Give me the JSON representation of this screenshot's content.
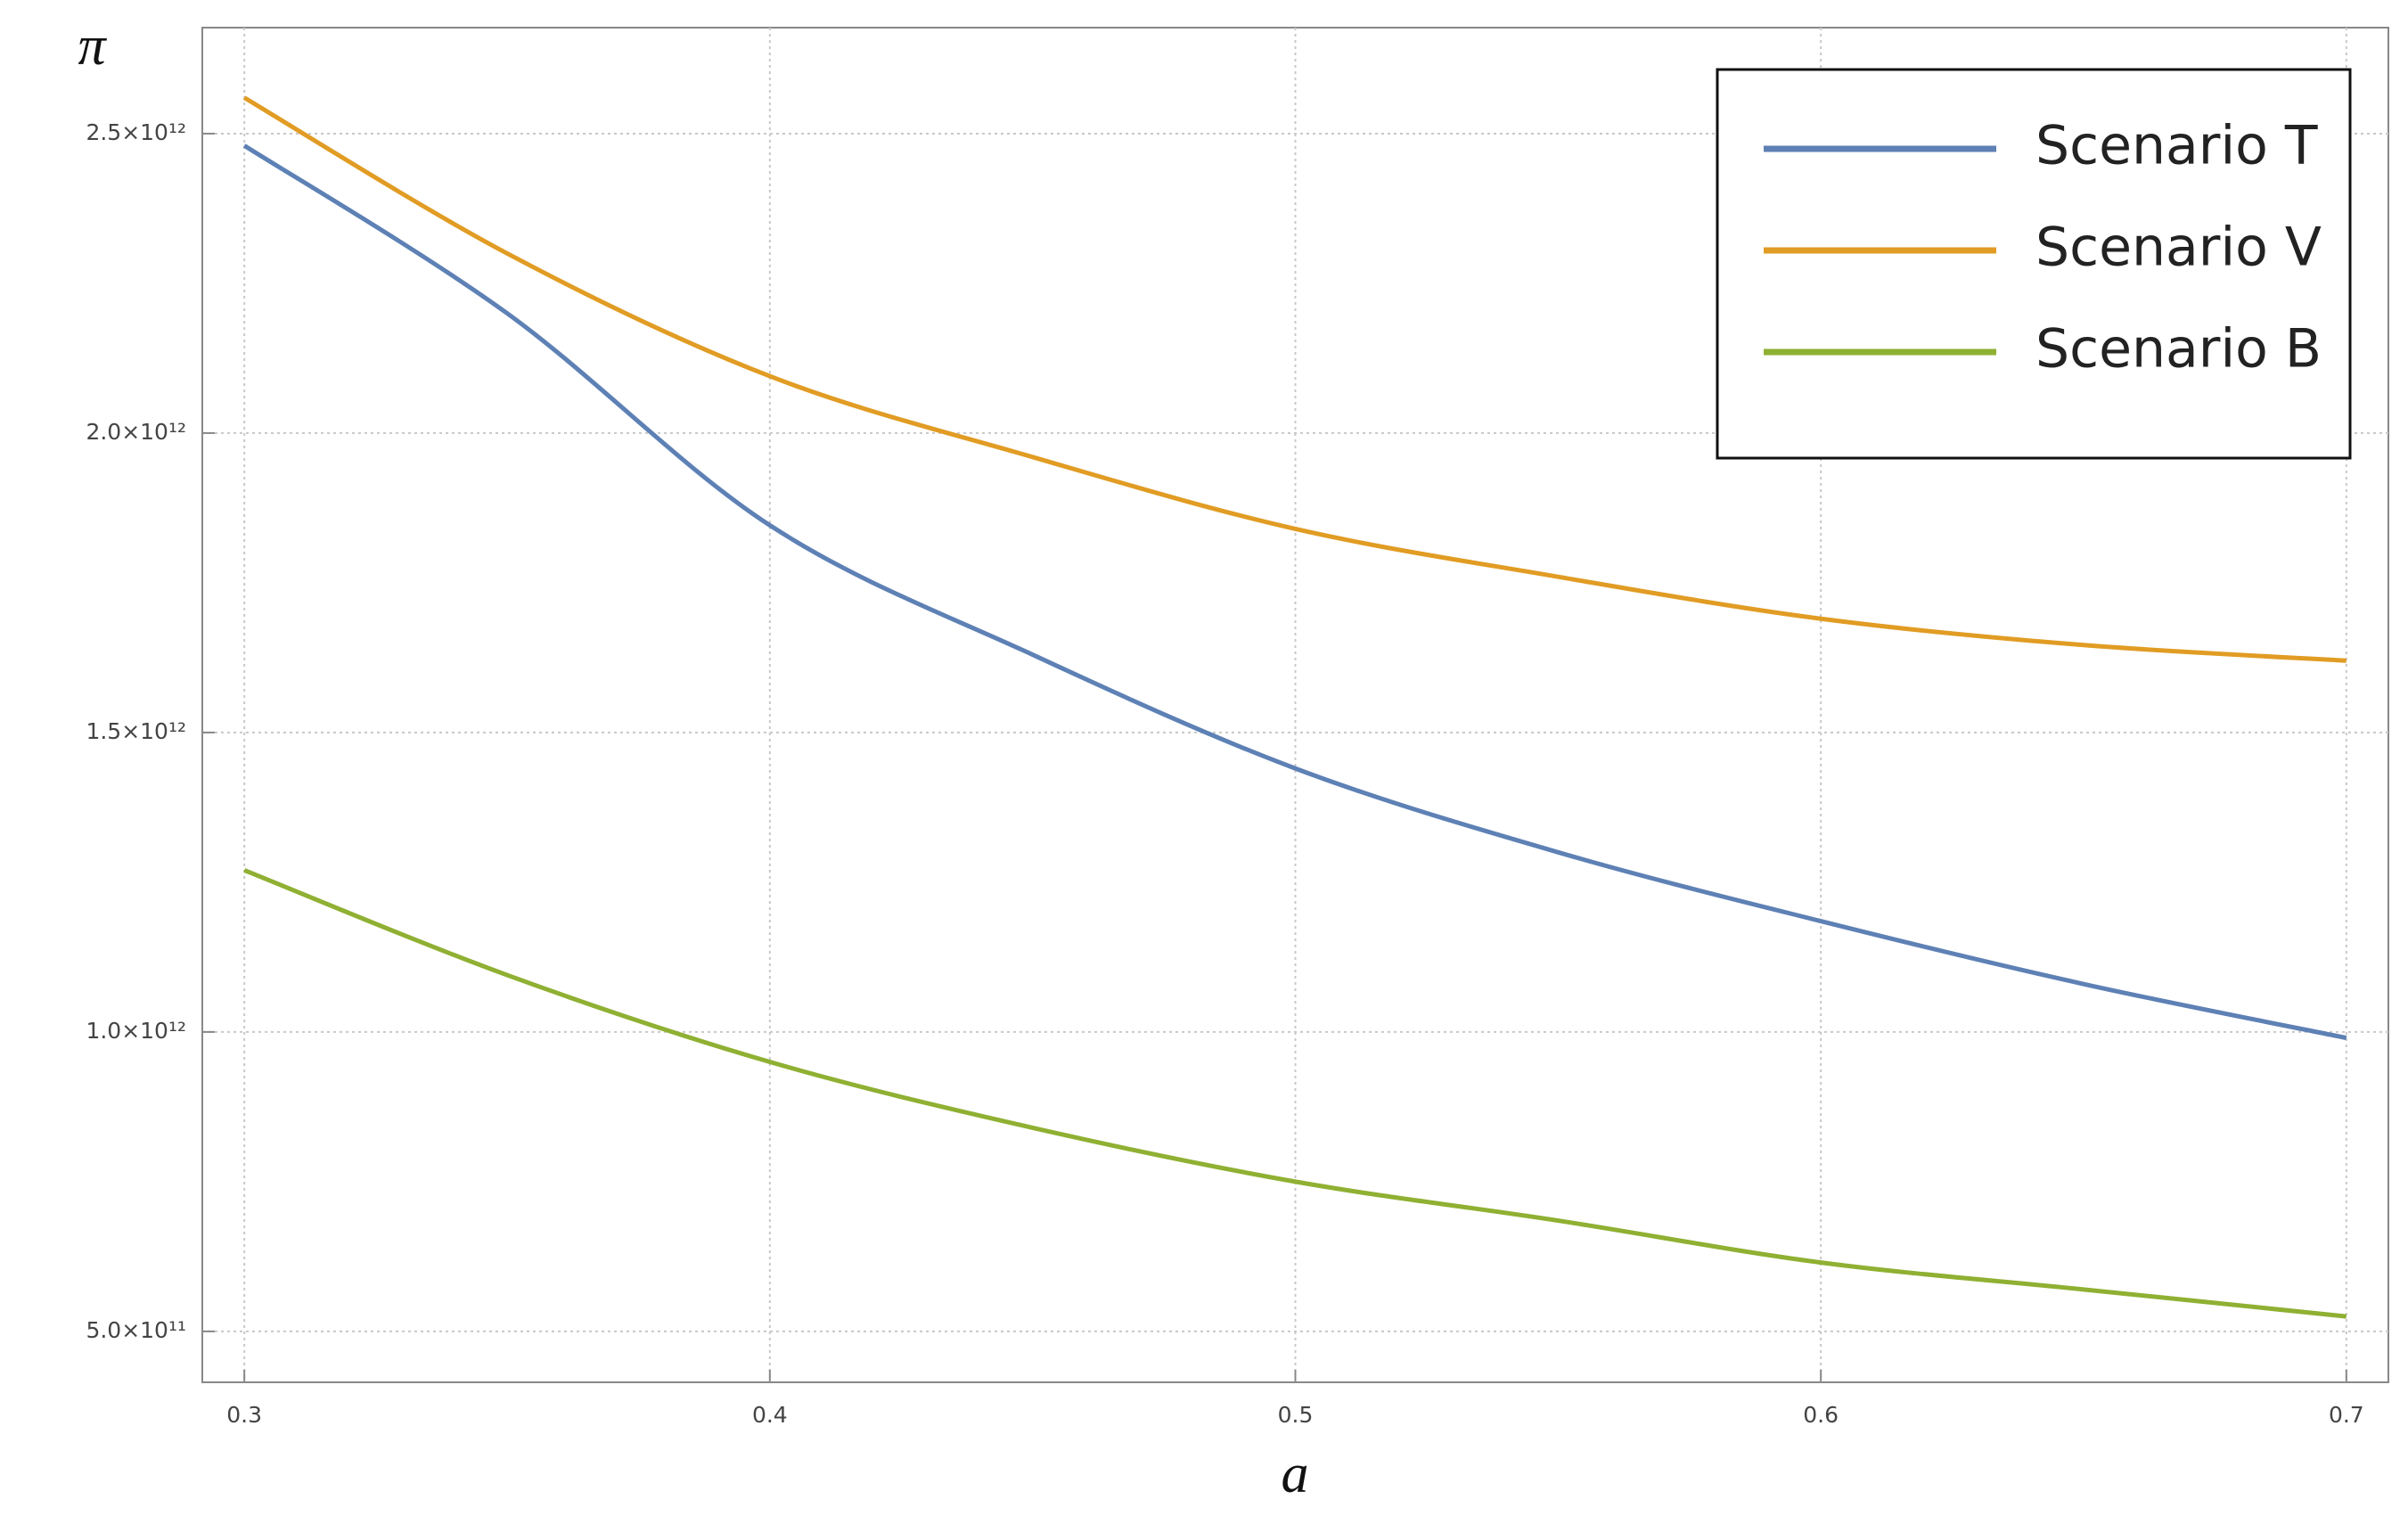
{
  "chart_data": {
    "type": "line",
    "x_label": "a",
    "y_label": "π",
    "x": [
      0.3,
      0.35,
      0.4,
      0.45,
      0.5,
      0.55,
      0.6,
      0.65,
      0.7
    ],
    "series": [
      {
        "name": "Scenario T",
        "color": "#5e81b5",
        "values": [
          2480000000000.0,
          2200000000000.0,
          1846000000000.0,
          1630000000000.0,
          1440000000000.0,
          1300000000000.0,
          1185000000000.0,
          1080000000000.0,
          990000000000.0
        ]
      },
      {
        "name": "Scenario V",
        "color": "#e19c24",
        "values": [
          2560000000000.0,
          2300000000000.0,
          2095000000000.0,
          1960000000000.0,
          1840000000000.0,
          1760000000000.0,
          1690000000000.0,
          1646000000000.0,
          1620000000000.0
        ]
      },
      {
        "name": "Scenario B",
        "color": "#8fb032",
        "values": [
          1270000000000.0,
          1095000000000.0,
          950000000000.0,
          840000000000.0,
          750000000000.0,
          685000000000.0,
          615000000000.0,
          570000000000.0,
          525000000000.0
        ]
      }
    ],
    "xlim": [
      0.292,
      0.708
    ],
    "ylim": [
      415000000000.0,
      2677000000000.0
    ],
    "xticks": [
      0.3,
      0.4,
      0.5,
      0.6,
      0.7
    ],
    "yticks": [
      {
        "value": 500000000000.0,
        "label": "5.0×10¹¹"
      },
      {
        "value": 1000000000000.0,
        "label": "1.0×10¹²"
      },
      {
        "value": 1500000000000.0,
        "label": "1.5×10¹²"
      },
      {
        "value": 2000000000000.0,
        "label": "2.0×10¹²"
      },
      {
        "value": 2500000000000.0,
        "label": "2.5×10¹²"
      }
    ],
    "grid": true,
    "legend_position": "upper right"
  }
}
